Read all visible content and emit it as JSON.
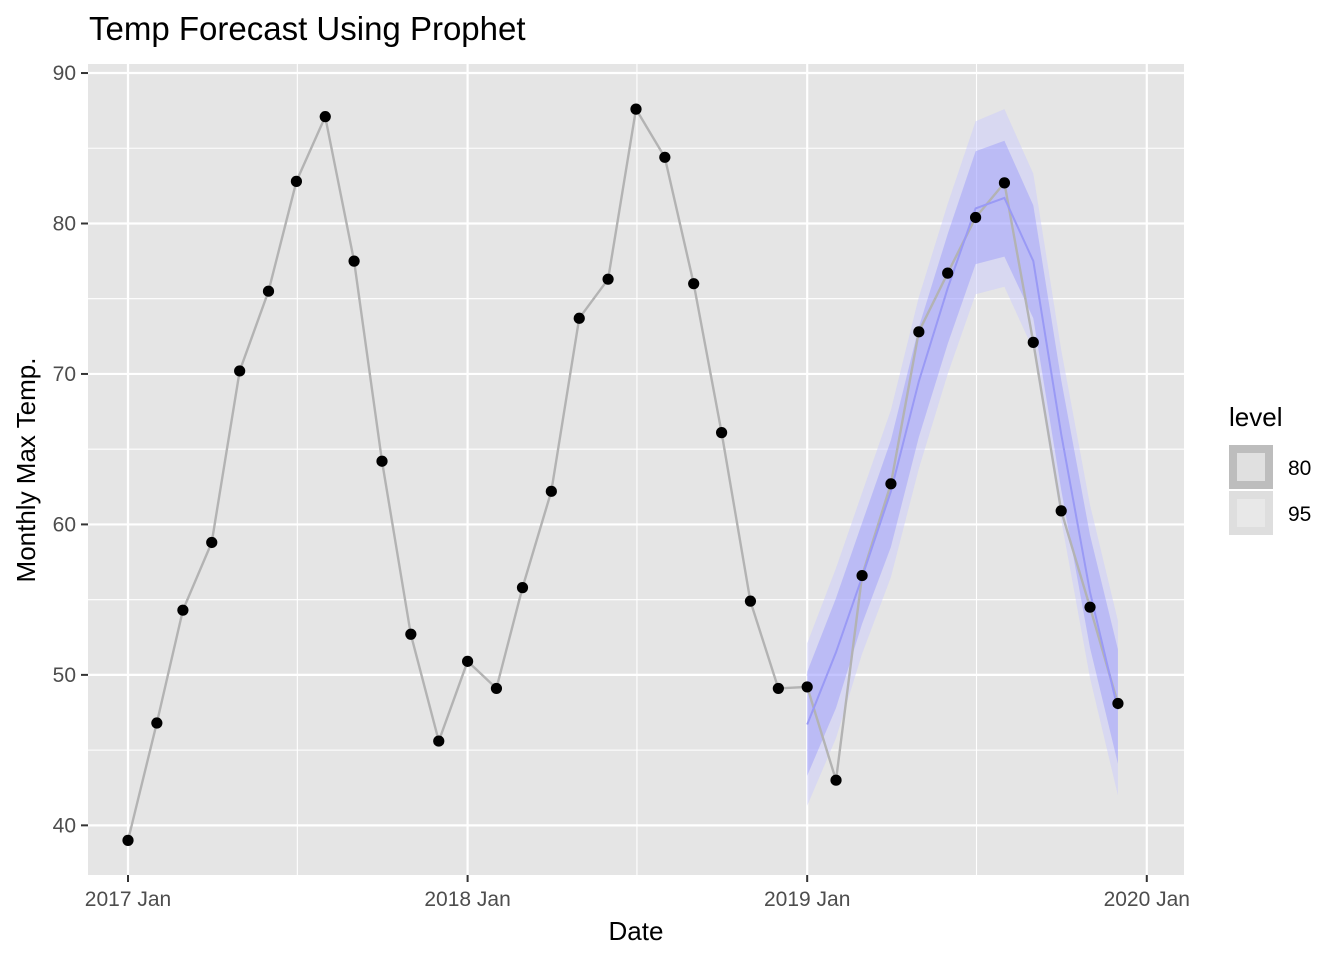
{
  "chart_data": {
    "type": "line",
    "title": "Temp Forecast Using Prophet",
    "xlabel": "Date",
    "ylabel": "Monthly Max Temp.",
    "ylim": [
      36.7,
      90.6
    ],
    "xlim": [
      "2016-11-19",
      "2020-02-10"
    ],
    "y_ticks": [
      40,
      50,
      60,
      70,
      80,
      90
    ],
    "x_ticks": [
      {
        "date": "2017-01-01",
        "label": "2017 Jan"
      },
      {
        "date": "2018-01-01",
        "label": "2018 Jan"
      },
      {
        "date": "2019-01-01",
        "label": "2019 Jan"
      },
      {
        "date": "2020-01-01",
        "label": "2020 Jan"
      }
    ],
    "x_minor_ticks": [
      "2017-07-02",
      "2018-07-02",
      "2019-07-02"
    ],
    "grid": true,
    "series": [
      {
        "values": [
          {
            "x": "2017-01-01",
            "y": 39.0
          },
          {
            "x": "2017-02-01",
            "y": 46.8
          },
          {
            "x": "2017-03-01",
            "y": 54.3
          },
          {
            "x": "2017-04-01",
            "y": 58.8
          },
          {
            "x": "2017-05-01",
            "y": 70.2
          },
          {
            "x": "2017-06-01",
            "y": 75.5
          },
          {
            "x": "2017-07-01",
            "y": 82.8
          },
          {
            "x": "2017-08-01",
            "y": 87.1
          },
          {
            "x": "2017-09-01",
            "y": 77.5
          },
          {
            "x": "2017-10-01",
            "y": 64.2
          },
          {
            "x": "2017-11-01",
            "y": 52.7
          },
          {
            "x": "2017-12-01",
            "y": 45.6
          },
          {
            "x": "2018-01-01",
            "y": 50.9
          },
          {
            "x": "2018-02-01",
            "y": 49.1
          },
          {
            "x": "2018-03-01",
            "y": 55.8
          },
          {
            "x": "2018-04-01",
            "y": 62.2
          },
          {
            "x": "2018-05-01",
            "y": 73.7
          },
          {
            "x": "2018-06-01",
            "y": 76.3
          },
          {
            "x": "2018-07-01",
            "y": 87.6
          },
          {
            "x": "2018-08-01",
            "y": 84.4
          },
          {
            "x": "2018-09-01",
            "y": 76.0
          },
          {
            "x": "2018-10-01",
            "y": 66.1
          },
          {
            "x": "2018-11-01",
            "y": 54.9
          },
          {
            "x": "2018-12-01",
            "y": 49.1
          },
          {
            "x": "2019-01-01",
            "y": 49.2
          },
          {
            "x": "2019-02-01",
            "y": 43.0
          },
          {
            "x": "2019-03-01",
            "y": 56.6
          },
          {
            "x": "2019-04-01",
            "y": 62.7
          },
          {
            "x": "2019-05-01",
            "y": 72.8
          },
          {
            "x": "2019-06-01",
            "y": 76.7
          },
          {
            "x": "2019-07-01",
            "y": 80.4
          },
          {
            "x": "2019-08-01",
            "y": 82.7
          },
          {
            "x": "2019-09-01",
            "y": 72.1
          },
          {
            "x": "2019-10-01",
            "y": 60.9
          },
          {
            "x": "2019-11-01",
            "y": 54.5
          },
          {
            "x": "2019-12-01",
            "y": 48.1
          }
        ]
      },
      {
        "type": "forecast",
        "values": [
          {
            "x": "2019-01-01",
            "y": 46.7
          },
          {
            "x": "2019-02-01",
            "y": 51.5
          },
          {
            "x": "2019-03-01",
            "y": 56.5
          },
          {
            "x": "2019-04-01",
            "y": 62.2
          },
          {
            "x": "2019-05-01",
            "y": 69.5
          },
          {
            "x": "2019-06-01",
            "y": 75.7
          },
          {
            "x": "2019-07-01",
            "y": 81.0
          },
          {
            "x": "2019-08-01",
            "y": 81.7
          },
          {
            "x": "2019-09-01",
            "y": 77.5
          },
          {
            "x": "2019-10-01",
            "y": 66.0
          },
          {
            "x": "2019-11-01",
            "y": 55.5
          },
          {
            "x": "2019-12-01",
            "y": 47.7
          }
        ],
        "intervals": {
          "80": {
            "lower": [
              43.3,
              47.8,
              53.4,
              58.5,
              65.8,
              72.0,
              77.3,
              77.8,
              73.7,
              62.3,
              51.8,
              44.1
            ],
            "upper": [
              50.2,
              55.1,
              60.1,
              65.6,
              73.1,
              79.3,
              84.8,
              85.5,
              81.2,
              69.6,
              59.3,
              51.7
            ]
          },
          "95": {
            "lower": [
              41.3,
              45.8,
              51.4,
              56.5,
              63.7,
              70.0,
              75.3,
              75.8,
              71.6,
              60.3,
              49.8,
              42.0
            ],
            "upper": [
              52.1,
              57.1,
              62.1,
              67.6,
              75.1,
              81.3,
              86.8,
              87.6,
              83.3,
              71.6,
              61.3,
              53.6
            ]
          }
        }
      }
    ],
    "legend": {
      "title": "level",
      "position": "right",
      "entries": [
        "80",
        "95"
      ]
    },
    "colors": {
      "panel_bg": "#e5e5e5",
      "grid": "#ffffff",
      "history_line": "#b3b3b3",
      "points": "#000000",
      "forecast_line": "#9a9af5",
      "band_80": "#8080ff",
      "band_95": "#c8c8ff",
      "legend_key_80": "#bdbdbd",
      "legend_key_95": "#dedede"
    }
  }
}
